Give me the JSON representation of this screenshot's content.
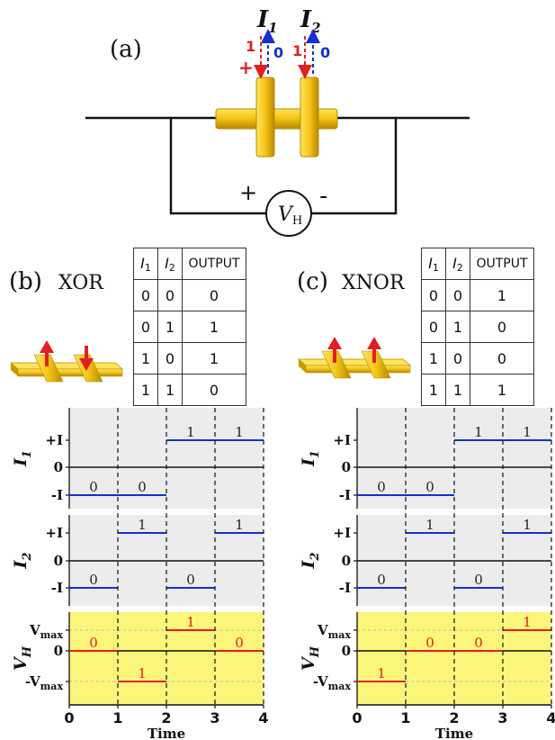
{
  "panel_a": {
    "label": "(a)",
    "current1": {
      "name": "I",
      "sub": "1"
    },
    "current2": {
      "name": "I",
      "sub": "2"
    },
    "arrow_red_1": "1",
    "arrow_blue_1": "0",
    "arrow_red_2": "1",
    "arrow_blue_2": "0",
    "plus_small": "+",
    "plus": "+",
    "minus": "-",
    "vh": {
      "name": "V",
      "sub": "H"
    }
  },
  "panel_b": {
    "label": "(b)",
    "gate": "XOR",
    "headers": [
      "I",
      "I",
      "OUTPUT"
    ],
    "header_subs": [
      "1",
      "2",
      ""
    ],
    "rows": [
      [
        "0",
        "0",
        "0"
      ],
      [
        "0",
        "1",
        "1"
      ],
      [
        "1",
        "0",
        "1"
      ],
      [
        "1",
        "1",
        "0"
      ]
    ]
  },
  "panel_c": {
    "label": "(c)",
    "gate": "XNOR",
    "headers": [
      "I",
      "I",
      "OUTPUT"
    ],
    "header_subs": [
      "1",
      "2",
      ""
    ],
    "rows": [
      [
        "0",
        "0",
        "1"
      ],
      [
        "0",
        "1",
        "0"
      ],
      [
        "1",
        "0",
        "0"
      ],
      [
        "1",
        "1",
        "1"
      ]
    ]
  },
  "colors": {
    "gold": "#f5c518",
    "gold_dark": "#c99a00",
    "red": "#e02020",
    "blue": "#1530d0",
    "gray_bg": "#ececec",
    "yellow_bg": "#fbf67a"
  },
  "chart_data": [
    {
      "type": "line",
      "name": "XOR timing",
      "xlabel": "Time",
      "x_ticks": [
        "0",
        "1",
        "2",
        "3",
        "4"
      ],
      "xlim": [
        0,
        4
      ],
      "rows": [
        {
          "ylabel": "I",
          "ylabel_sub": "1",
          "ticks": [
            "+I",
            "0",
            "-I"
          ],
          "segments": [
            {
              "x0": 0,
              "x1": 1,
              "level": -1,
              "label": "0"
            },
            {
              "x0": 1,
              "x1": 2,
              "level": -1,
              "label": "0"
            },
            {
              "x0": 2,
              "x1": 3,
              "level": 1,
              "label": "1"
            },
            {
              "x0": 3,
              "x1": 4,
              "level": 1,
              "label": "1"
            }
          ]
        },
        {
          "ylabel": "I",
          "ylabel_sub": "2",
          "ticks": [
            "+I",
            "0",
            "-I"
          ],
          "segments": [
            {
              "x0": 0,
              "x1": 1,
              "level": -1,
              "label": "0"
            },
            {
              "x0": 1,
              "x1": 2,
              "level": 1,
              "label": "1"
            },
            {
              "x0": 2,
              "x1": 3,
              "level": -1,
              "label": "0"
            },
            {
              "x0": 3,
              "x1": 4,
              "level": 1,
              "label": "1"
            }
          ]
        },
        {
          "ylabel": "V",
          "ylabel_sub": "H",
          "ticks": [
            "V",
            "0",
            "-V"
          ],
          "tick_subs": [
            "max",
            "",
            "max"
          ],
          "segments": [
            {
              "x0": 0,
              "x1": 1,
              "level": 0,
              "label": "0"
            },
            {
              "x0": 1,
              "x1": 2,
              "level": -1,
              "label": "1"
            },
            {
              "x0": 2,
              "x1": 3,
              "level": 1,
              "label": "1"
            },
            {
              "x0": 3,
              "x1": 4,
              "level": 0,
              "label": "0"
            }
          ]
        }
      ]
    },
    {
      "type": "line",
      "name": "XNOR timing",
      "xlabel": "Time",
      "x_ticks": [
        "0",
        "1",
        "2",
        "3",
        "4"
      ],
      "xlim": [
        0,
        4
      ],
      "rows": [
        {
          "ylabel": "I",
          "ylabel_sub": "1",
          "ticks": [
            "+I",
            "0",
            "-I"
          ],
          "segments": [
            {
              "x0": 0,
              "x1": 1,
              "level": -1,
              "label": "0"
            },
            {
              "x0": 1,
              "x1": 2,
              "level": -1,
              "label": "0"
            },
            {
              "x0": 2,
              "x1": 3,
              "level": 1,
              "label": "1"
            },
            {
              "x0": 3,
              "x1": 4,
              "level": 1,
              "label": "1"
            }
          ]
        },
        {
          "ylabel": "I",
          "ylabel_sub": "2",
          "ticks": [
            "+I",
            "0",
            "-I"
          ],
          "segments": [
            {
              "x0": 0,
              "x1": 1,
              "level": -1,
              "label": "0"
            },
            {
              "x0": 1,
              "x1": 2,
              "level": 1,
              "label": "1"
            },
            {
              "x0": 2,
              "x1": 3,
              "level": -1,
              "label": "0"
            },
            {
              "x0": 3,
              "x1": 4,
              "level": 1,
              "label": "1"
            }
          ]
        },
        {
          "ylabel": "V",
          "ylabel_sub": "H",
          "ticks": [
            "V",
            "0",
            "-V"
          ],
          "tick_subs": [
            "max",
            "",
            "max"
          ],
          "segments": [
            {
              "x0": 0,
              "x1": 1,
              "level": -1,
              "label": "1"
            },
            {
              "x0": 1,
              "x1": 2,
              "level": 0,
              "label": "0"
            },
            {
              "x0": 2,
              "x1": 3,
              "level": 0,
              "label": "0"
            },
            {
              "x0": 3,
              "x1": 4,
              "level": 1,
              "label": "1"
            }
          ]
        }
      ]
    }
  ]
}
